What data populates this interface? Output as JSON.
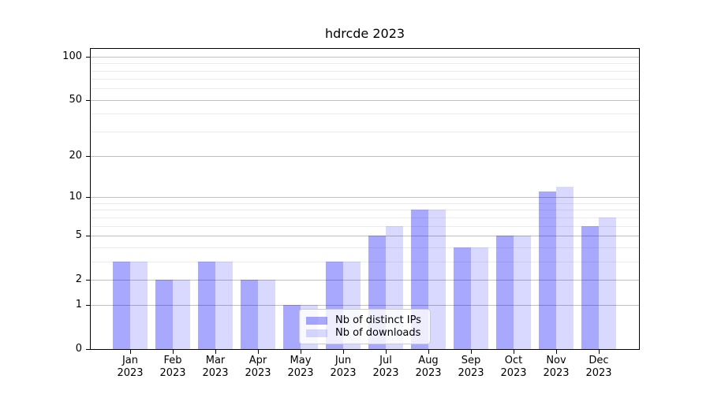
{
  "chart_data": {
    "type": "bar",
    "title": "hdrcde 2023",
    "categories": [
      "Jan",
      "Feb",
      "Mar",
      "Apr",
      "May",
      "Jun",
      "Jul",
      "Aug",
      "Sep",
      "Oct",
      "Nov",
      "Dec"
    ],
    "category_year": "2023",
    "series": [
      {
        "name": "Nb of distinct IPs",
        "color": "#0000FF57",
        "values": [
          3,
          2,
          3,
          2,
          1,
          3,
          5,
          8,
          4,
          5,
          11,
          6
        ]
      },
      {
        "name": "Nb of downloads",
        "color": "#0000FF26",
        "values": [
          3,
          2,
          3,
          2,
          1,
          3,
          6,
          8,
          4,
          5,
          12,
          7
        ]
      }
    ],
    "yscale": "log1p",
    "ylim": [
      0,
      113
    ],
    "yticks": [
      0,
      1,
      2,
      5,
      10,
      20,
      50,
      100
    ],
    "yticks_minor": [
      3,
      4,
      6,
      7,
      8,
      9,
      30,
      40,
      60,
      70,
      80,
      90
    ],
    "grid": true,
    "legend_position": "lower center",
    "colors": {
      "grid_major": "#c0c0c0",
      "grid_minor": "#ebebeb",
      "axis": "#000000",
      "text": "#000000",
      "legend_background": "#FFFFFFCC",
      "legend_border": "#cccccc"
    }
  }
}
